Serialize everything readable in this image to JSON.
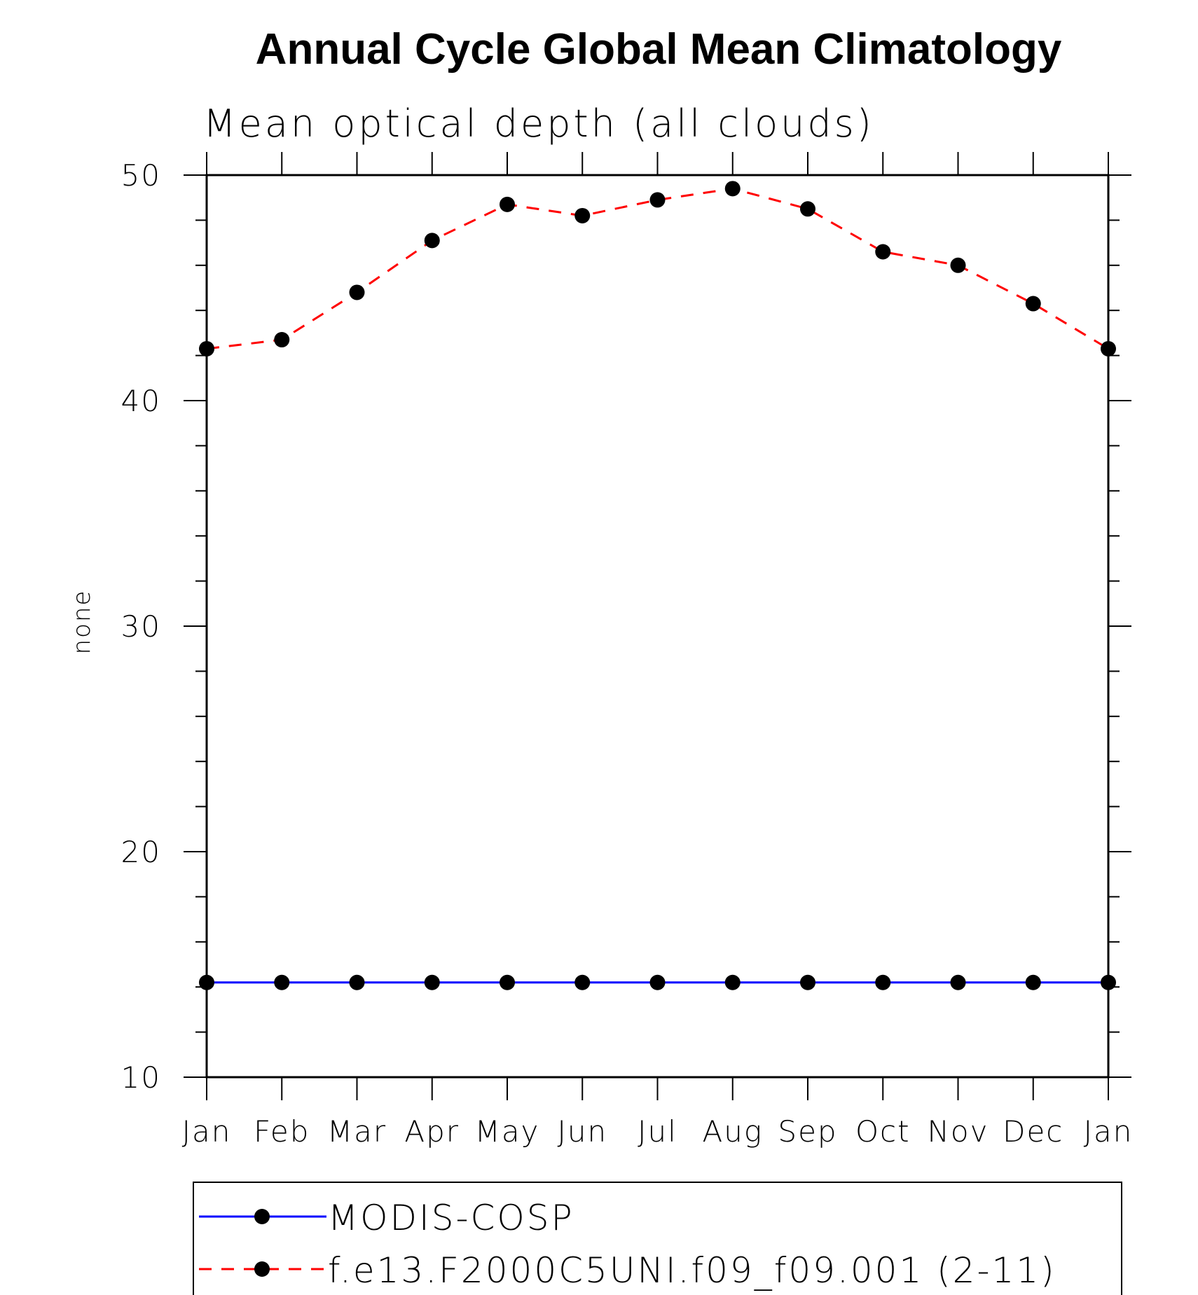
{
  "chart_data": {
    "type": "line",
    "title": "Annual Cycle Global Mean Climatology",
    "subtitle": "Mean optical depth (all clouds)",
    "xlabel": "",
    "ylabel": "none",
    "ylim": [
      10,
      50
    ],
    "yticks": [
      10,
      20,
      30,
      40,
      50
    ],
    "categories": [
      "Jan",
      "Feb",
      "Mar",
      "Apr",
      "May",
      "Jun",
      "Jul",
      "Aug",
      "Sep",
      "Oct",
      "Nov",
      "Dec",
      "Jan"
    ],
    "series": [
      {
        "name": "MODIS-COSP",
        "color": "#0000ff",
        "line_style": "solid",
        "values": [
          14.2,
          14.2,
          14.2,
          14.2,
          14.2,
          14.2,
          14.2,
          14.2,
          14.2,
          14.2,
          14.2,
          14.2,
          14.2
        ]
      },
      {
        "name": "f.e13.F2000C5UNI.f09_f09.001 (2-11)",
        "color": "#ff0000",
        "line_style": "dashed",
        "values": [
          42.3,
          42.7,
          44.8,
          47.1,
          48.7,
          48.2,
          48.9,
          49.4,
          48.5,
          46.6,
          46.0,
          44.3,
          42.3
        ]
      }
    ],
    "marker_color": "#000000",
    "legend_position": "bottom"
  }
}
